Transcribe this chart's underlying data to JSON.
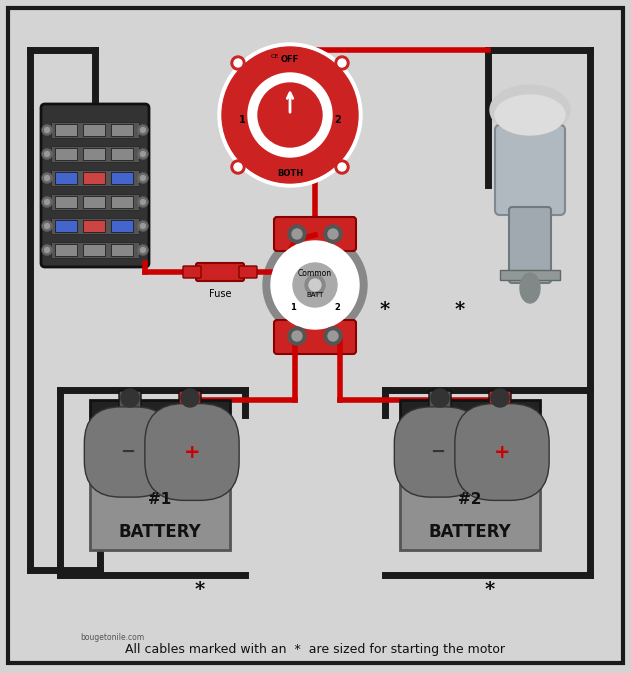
{
  "bg_color": "#d4d4d4",
  "border_color": "#1a1a1a",
  "red_wire": "#cc0000",
  "black_wire": "#1a1a1a",
  "battery_body": "#a0a0a0",
  "battery_top": "#404040",
  "title_text": "All cables marked with an  *  are sized for starting the motor",
  "watermark": "bougetonile.com",
  "fuse_label": "Fuse",
  "common_label": "Common",
  "batt_label": "BATT",
  "switch_labels": [
    "OFF",
    "1",
    "2",
    "BOTH"
  ],
  "battery1_labels": [
    "#1",
    "BATTERY"
  ],
  "battery2_labels": [
    "#2",
    "BATTERY"
  ]
}
